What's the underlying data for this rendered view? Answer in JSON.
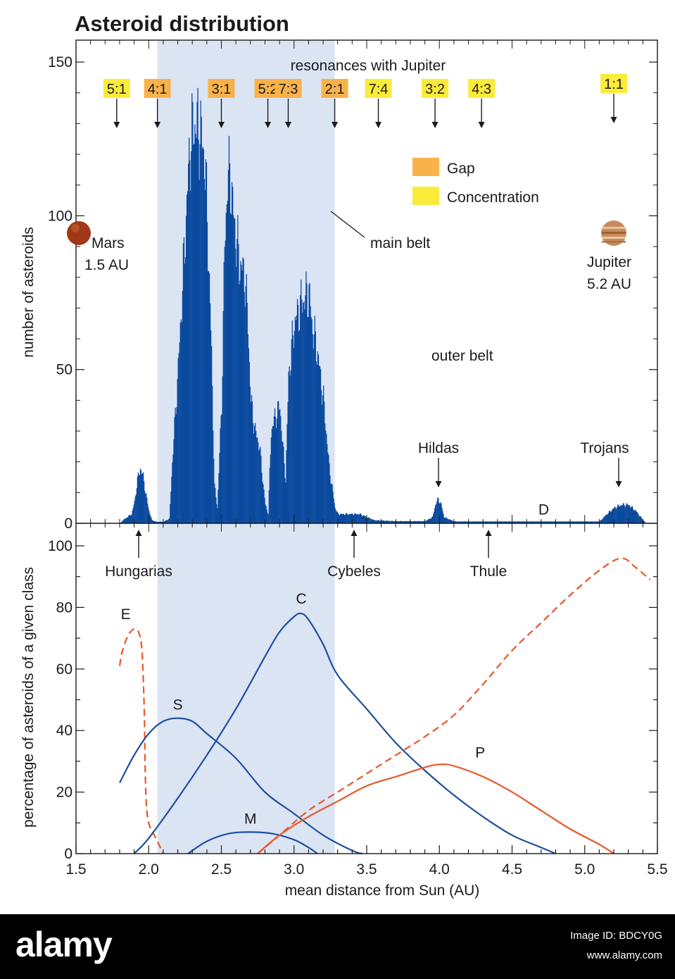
{
  "title": "Asteroid distribution",
  "chart_data": [
    {
      "type": "bar",
      "ylabel": "number of asteroids",
      "xlim": [
        1.5,
        5.5
      ],
      "ylim": [
        0,
        150
      ],
      "yticks": [
        0,
        50,
        100,
        150
      ],
      "bar_color": "#0b4a9e",
      "profile": [
        [
          1.8,
          0
        ],
        [
          1.82,
          1
        ],
        [
          1.85,
          2
        ],
        [
          1.88,
          3
        ],
        [
          1.9,
          7
        ],
        [
          1.92,
          14
        ],
        [
          1.94,
          18
        ],
        [
          1.96,
          15
        ],
        [
          1.98,
          9
        ],
        [
          2.0,
          4
        ],
        [
          2.02,
          1
        ],
        [
          2.05,
          0.5
        ],
        [
          2.1,
          0.5
        ],
        [
          2.14,
          1.5
        ],
        [
          2.16,
          20
        ],
        [
          2.2,
          50
        ],
        [
          2.25,
          95
        ],
        [
          2.28,
          122
        ],
        [
          2.31,
          130
        ],
        [
          2.35,
          128
        ],
        [
          2.38,
          120
        ],
        [
          2.4,
          100
        ],
        [
          2.43,
          55
        ],
        [
          2.45,
          12
        ],
        [
          2.47,
          5
        ],
        [
          2.5,
          40
        ],
        [
          2.52,
          90
        ],
        [
          2.54,
          112
        ],
        [
          2.56,
          113
        ],
        [
          2.58,
          100
        ],
        [
          2.62,
          85
        ],
        [
          2.66,
          80
        ],
        [
          2.68,
          65
        ],
        [
          2.7,
          40
        ],
        [
          2.73,
          30
        ],
        [
          2.76,
          25
        ],
        [
          2.78,
          15
        ],
        [
          2.8,
          6
        ],
        [
          2.82,
          3
        ],
        [
          2.84,
          30
        ],
        [
          2.87,
          35
        ],
        [
          2.9,
          38
        ],
        [
          2.92,
          25
        ],
        [
          2.94,
          14
        ],
        [
          2.96,
          48
        ],
        [
          3.0,
          65
        ],
        [
          3.05,
          72
        ],
        [
          3.1,
          75
        ],
        [
          3.12,
          65
        ],
        [
          3.16,
          55
        ],
        [
          3.2,
          40
        ],
        [
          3.24,
          18
        ],
        [
          3.28,
          5
        ],
        [
          3.3,
          3
        ],
        [
          3.35,
          3
        ],
        [
          3.45,
          3
        ],
        [
          3.55,
          1
        ],
        [
          3.7,
          0.7
        ],
        [
          3.9,
          0.7
        ],
        [
          3.95,
          2
        ],
        [
          3.97,
          6
        ],
        [
          3.99,
          8
        ],
        [
          4.01,
          6
        ],
        [
          4.03,
          2
        ],
        [
          4.1,
          0.6
        ],
        [
          4.6,
          0.6
        ],
        [
          5.1,
          0.6
        ],
        [
          5.15,
          3
        ],
        [
          5.2,
          5
        ],
        [
          5.25,
          6
        ],
        [
          5.3,
          6
        ],
        [
          5.35,
          4
        ],
        [
          5.4,
          1
        ],
        [
          5.42,
          0
        ]
      ]
    },
    {
      "type": "line",
      "xlabel": "mean distance from Sun (AU)",
      "ylabel": "percentage of asteroids of a given class",
      "xlim": [
        1.5,
        5.5
      ],
      "ylim": [
        0,
        105
      ],
      "xticks": [
        "1.5",
        "2.0",
        "2.5",
        "3.0",
        "3.5",
        "4.0",
        "4.5",
        "5.0",
        "5.5"
      ],
      "yticks": [
        0,
        20,
        40,
        60,
        80,
        100
      ],
      "series": [
        {
          "name": "E",
          "color": "#e8572a",
          "dashed": true,
          "x": [
            1.8,
            1.82,
            1.86,
            1.9,
            1.93,
            1.95,
            1.96,
            1.97,
            1.98,
            2.0,
            2.05,
            2.1
          ],
          "y": [
            61,
            66,
            71,
            73,
            72,
            68,
            60,
            45,
            20,
            10,
            5,
            0
          ]
        },
        {
          "name": "S",
          "color": "#1f4f9e",
          "dashed": false,
          "x": [
            1.8,
            1.9,
            2.0,
            2.1,
            2.2,
            2.3,
            2.4,
            2.6,
            2.8,
            3.0,
            3.2,
            3.4,
            3.47
          ],
          "y": [
            23,
            32,
            39,
            43,
            44,
            43,
            39,
            31,
            20,
            13,
            6,
            1,
            0
          ]
        },
        {
          "name": "C",
          "color": "#1f4f9e",
          "dashed": false,
          "x": [
            1.9,
            2.0,
            2.2,
            2.4,
            2.6,
            2.8,
            2.9,
            3.0,
            3.05,
            3.1,
            3.2,
            3.3,
            3.5,
            3.7,
            3.9,
            4.1,
            4.3,
            4.5,
            4.7,
            4.8
          ],
          "y": [
            0,
            5,
            18,
            32,
            47,
            64,
            72,
            77,
            78,
            76,
            68,
            58,
            47,
            36,
            27,
            19,
            12,
            6,
            2,
            0
          ]
        },
        {
          "name": "M",
          "color": "#1f4f9e",
          "dashed": false,
          "x": [
            2.27,
            2.4,
            2.55,
            2.7,
            2.85,
            3.0,
            3.1,
            3.16
          ],
          "y": [
            0,
            4,
            6.5,
            7,
            6.5,
            4.5,
            2,
            0
          ]
        },
        {
          "name": "D",
          "color": "#e8572a",
          "dashed": true,
          "x": [
            2.75,
            2.9,
            3.1,
            3.3,
            3.5,
            3.7,
            3.9,
            4.1,
            4.3,
            4.5,
            4.7,
            4.9,
            5.1,
            5.25,
            5.35,
            5.45
          ],
          "y": [
            0,
            6,
            14,
            20,
            26,
            32,
            38,
            45,
            55,
            66,
            75,
            84,
            92,
            96,
            93,
            89
          ]
        },
        {
          "name": "P",
          "color": "#e8572a",
          "dashed": false,
          "x": [
            2.75,
            2.9,
            3.1,
            3.3,
            3.5,
            3.7,
            3.9,
            4.0,
            4.1,
            4.3,
            4.5,
            4.7,
            4.9,
            5.1,
            5.2
          ],
          "y": [
            0,
            6,
            12,
            17,
            22,
            25,
            28,
            29,
            28.5,
            25,
            20,
            14,
            8,
            3,
            0
          ]
        }
      ]
    }
  ],
  "main_belt": {
    "x_range": [
      2.06,
      3.28
    ],
    "label": "main belt",
    "color": "#dbe4f3"
  },
  "resonances": {
    "title": "resonances with Jupiter",
    "items": [
      {
        "label": "5:1",
        "x": 1.78,
        "kind": "concentration"
      },
      {
        "label": "4:1",
        "x": 2.06,
        "kind": "gap"
      },
      {
        "label": "3:1",
        "x": 2.5,
        "kind": "gap"
      },
      {
        "label": "5:2",
        "x": 2.82,
        "kind": "gap"
      },
      {
        "label": "7:3",
        "x": 2.96,
        "kind": "gap"
      },
      {
        "label": "2:1",
        "x": 3.28,
        "kind": "gap"
      },
      {
        "label": "7:4",
        "x": 3.58,
        "kind": "concentration"
      },
      {
        "label": "3:2",
        "x": 3.97,
        "kind": "concentration"
      },
      {
        "label": "4:3",
        "x": 4.29,
        "kind": "concentration"
      },
      {
        "label": "1:1",
        "x": 5.2,
        "kind": "concentration"
      }
    ]
  },
  "legend": {
    "items": [
      {
        "label": "Gap",
        "color": "#f9b24a"
      },
      {
        "label": "Concentration",
        "color": "#fbeb3a"
      }
    ]
  },
  "planets": {
    "mars": {
      "name": "Mars",
      "distance": "1.5 AU",
      "color": "#a03818"
    },
    "jupiter": {
      "name": "Jupiter",
      "distance": "5.2 AU",
      "color": "#c98a58"
    }
  },
  "annotations": {
    "outer_belt": "outer belt",
    "hildas": "Hildas",
    "trojans": "Trojans",
    "hungarias": "Hungarias",
    "cybeles": "Cybeles",
    "thule": "Thule"
  },
  "footer": {
    "brand": "alamy",
    "image_id": "Image ID: BDCY0G",
    "site": "www.alamy.com"
  }
}
